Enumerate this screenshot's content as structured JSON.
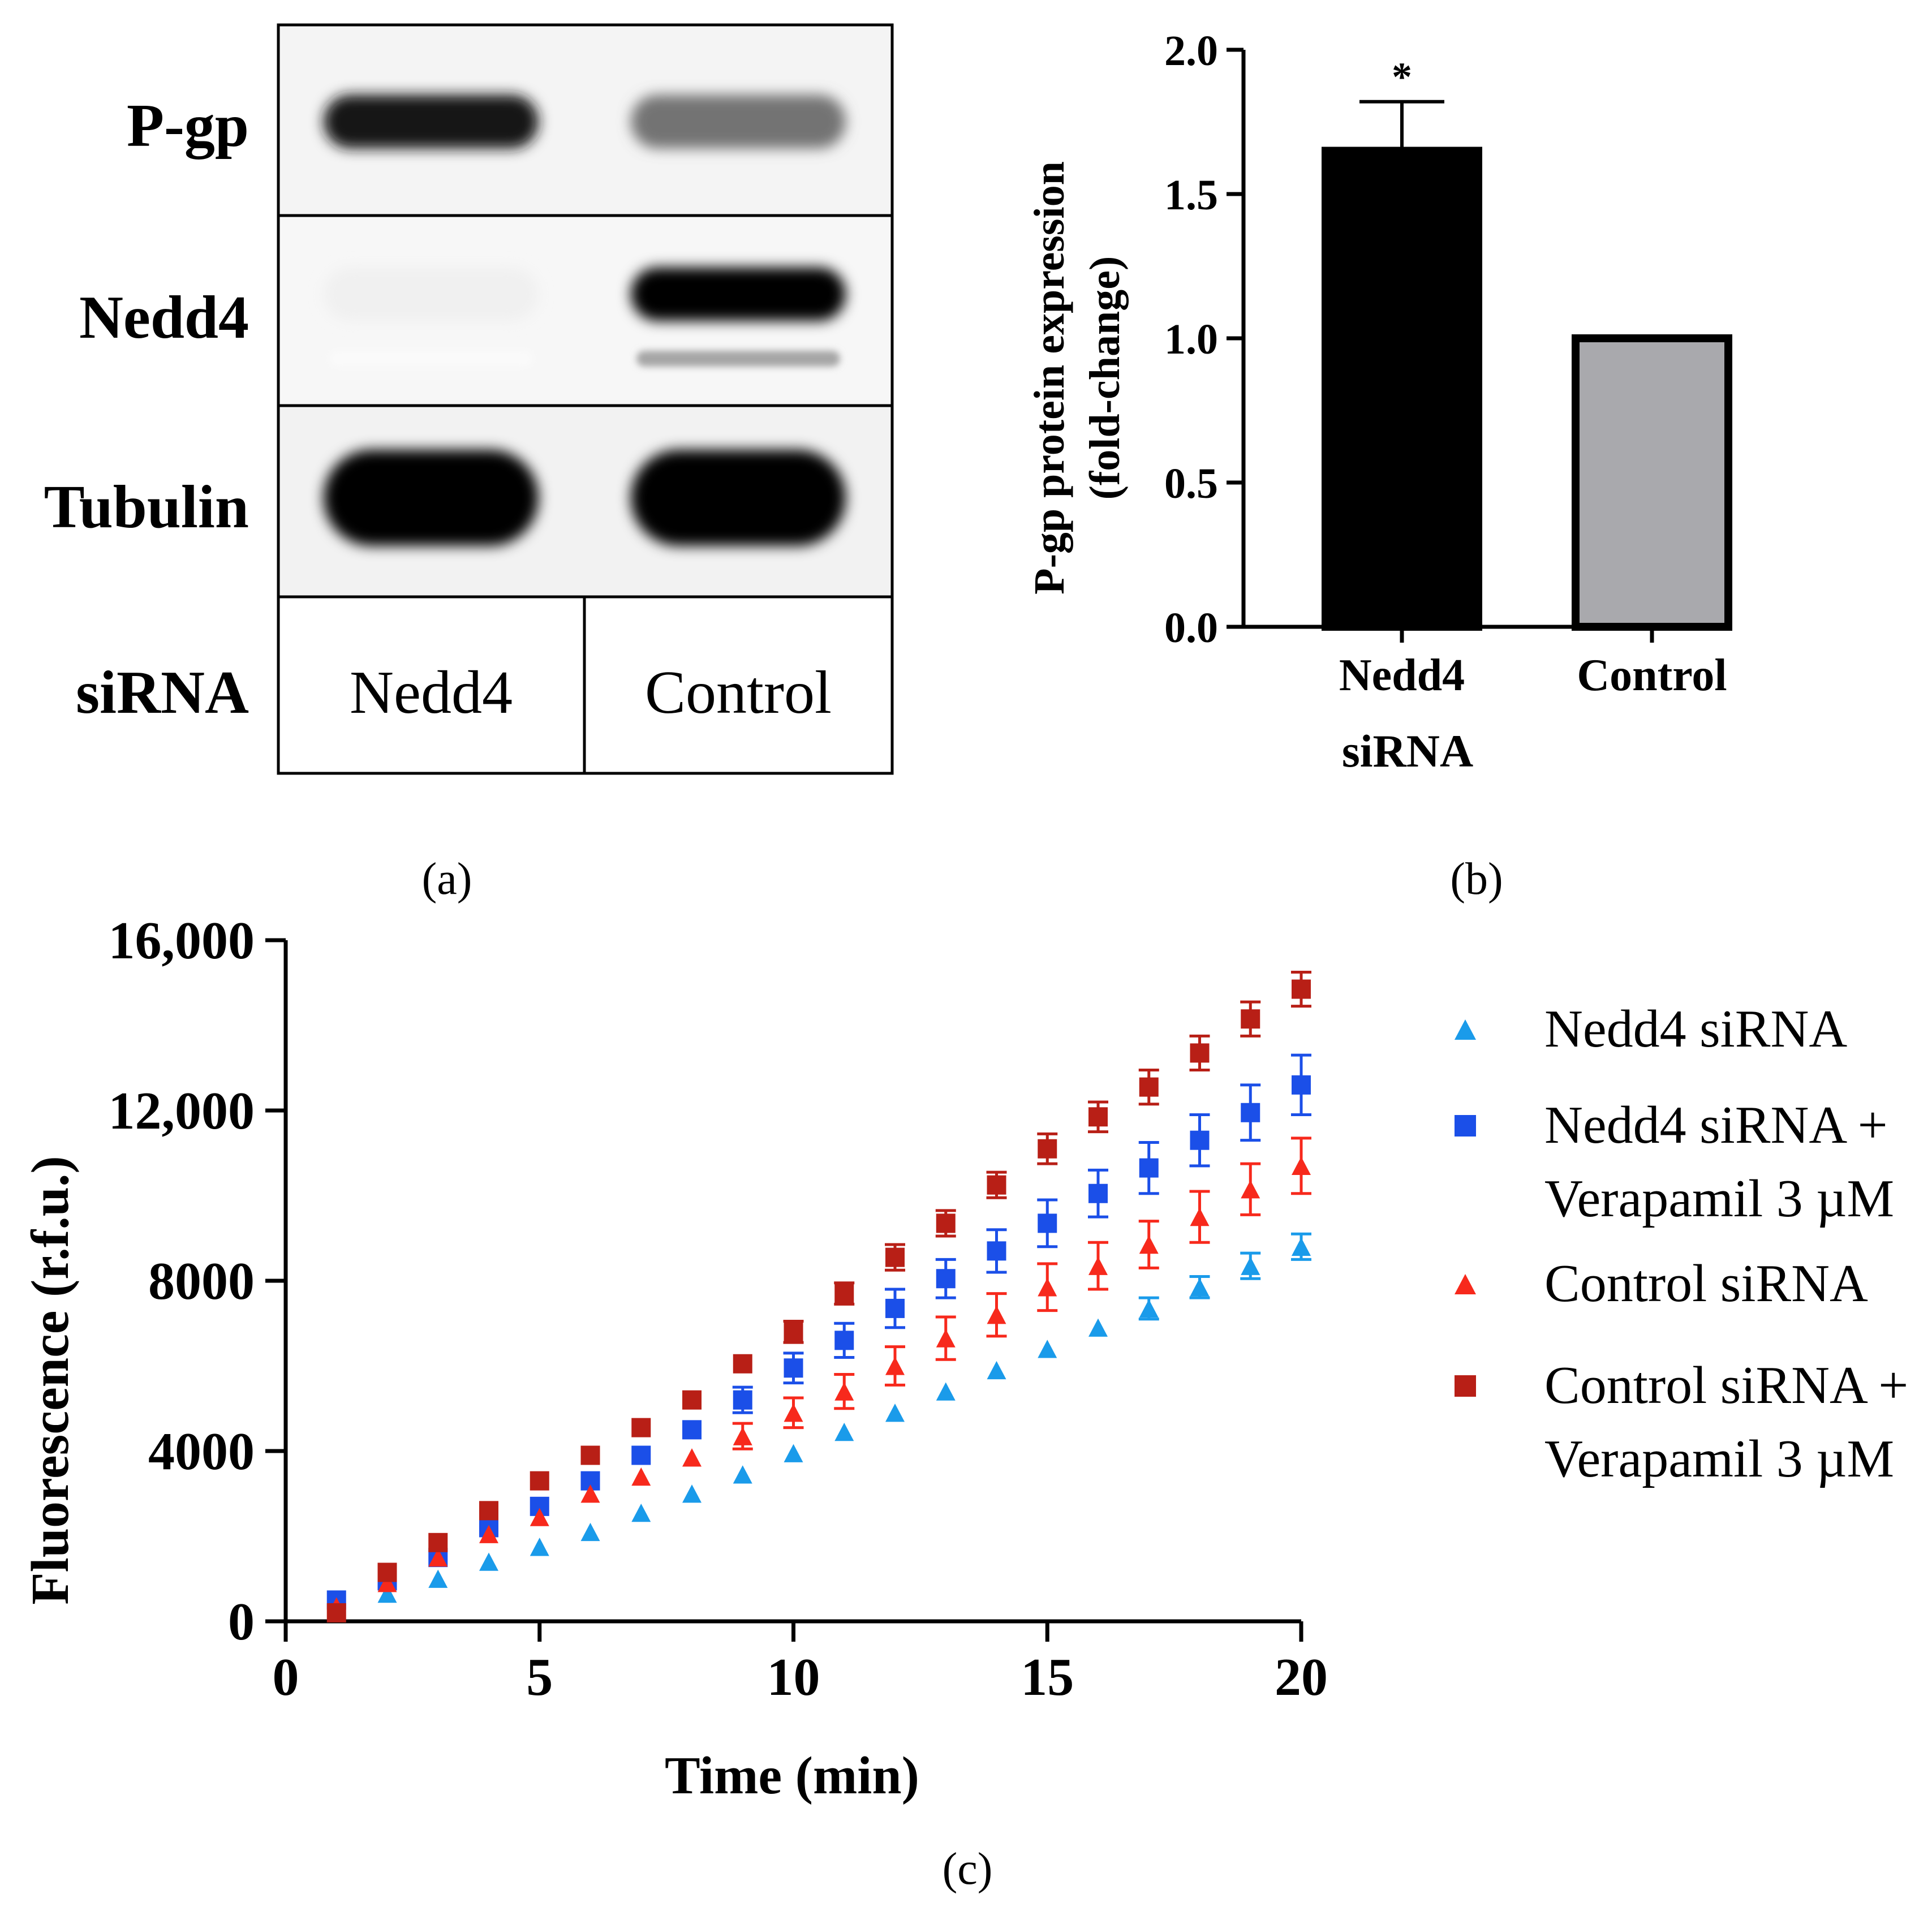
{
  "panels": {
    "a_label": "(a)",
    "b_label": "(b)",
    "c_label": "(c)"
  },
  "western_blot": {
    "rows": [
      "P-gp",
      "Nedd4",
      "Tubulin"
    ],
    "footer_label": "siRNA",
    "lanes": [
      "Nedd4",
      "Control"
    ],
    "band_intensity": {
      "P-gp": [
        0.9,
        0.55
      ],
      "Nedd4": [
        0.06,
        1.0
      ],
      "Tubulin": [
        1.0,
        1.0
      ]
    }
  },
  "chart_data": [
    {
      "id": "b",
      "type": "bar",
      "categories": [
        "Nedd4",
        "Control"
      ],
      "values": [
        1.65,
        1.0
      ],
      "errors": [
        0.17,
        0
      ],
      "bar_colors": [
        "#000000",
        "#a9a9ad"
      ],
      "significance": [
        "*",
        ""
      ],
      "title": "",
      "xlabel": "siRNA",
      "ylabel_lines": [
        "P-gp protein expression",
        "(fold-change)"
      ],
      "ylim": [
        0,
        2.0
      ],
      "yticks": [
        0,
        0.5,
        1.0,
        1.5,
        2.0
      ],
      "ytick_labels": [
        "0.0",
        "0.5",
        "1.0",
        "1.5",
        "2.0"
      ]
    },
    {
      "id": "c",
      "type": "scatter",
      "title": "",
      "xlabel": "Time (min)",
      "ylabel": "Fluorescence  (r.f.u.)",
      "xlim": [
        0,
        20
      ],
      "ylim": [
        0,
        16000
      ],
      "xticks": [
        0,
        5,
        10,
        15,
        20
      ],
      "xtick_labels": [
        "0",
        "5",
        "10",
        "15",
        "20"
      ],
      "yticks": [
        0,
        4000,
        8000,
        12000,
        16000
      ],
      "ytick_labels": [
        "0",
        "4000",
        "8000",
        "12,000",
        "16,000"
      ],
      "legend_position": "right",
      "x": [
        1,
        2,
        3,
        4,
        5,
        6,
        7,
        8,
        9,
        10,
        11,
        12,
        13,
        14,
        15,
        16,
        17,
        18,
        19,
        20
      ],
      "series": [
        {
          "name_lines": [
            "Nedd4 siRNA"
          ],
          "marker": "triangle",
          "color": "#1a9bea",
          "values": [
            200,
            650,
            1000,
            1400,
            1750,
            2100,
            2550,
            3000,
            3450,
            3950,
            4450,
            4900,
            5400,
            5900,
            6400,
            6900,
            7350,
            7850,
            8350,
            8800
          ],
          "errors": [
            0,
            0,
            0,
            0,
            0,
            0,
            0,
            0,
            0,
            0,
            0,
            0,
            0,
            0,
            0,
            0,
            250,
            250,
            300,
            300
          ]
        },
        {
          "name_lines": [
            "Nedd4 siRNA +",
            "Verapamil 3 µM"
          ],
          "marker": "square",
          "color": "#1b4fe8",
          "values": [
            500,
            950,
            1500,
            2200,
            2700,
            3300,
            3900,
            4500,
            5200,
            5950,
            6600,
            7350,
            8050,
            8700,
            9350,
            10050,
            10650,
            11300,
            11950,
            12600
          ],
          "errors": [
            0,
            0,
            0,
            0,
            0,
            0,
            0,
            0,
            300,
            350,
            400,
            450,
            450,
            500,
            550,
            550,
            600,
            600,
            650,
            700
          ]
        },
        {
          "name_lines": [
            "Control siRNA"
          ],
          "marker": "triangle",
          "color": "#f7291c",
          "values": [
            350,
            900,
            1500,
            2050,
            2450,
            3000,
            3400,
            3850,
            4350,
            4900,
            5400,
            6000,
            6650,
            7200,
            7850,
            8350,
            8850,
            9500,
            10150,
            10700
          ],
          "errors": [
            0,
            0,
            0,
            0,
            0,
            0,
            0,
            0,
            300,
            350,
            400,
            450,
            500,
            500,
            550,
            550,
            550,
            600,
            600,
            650
          ]
        },
        {
          "name_lines": [
            "Control siRNA +",
            "Verapamil 3 µM"
          ],
          "marker": "square",
          "color": "#b81f16",
          "values": [
            200,
            1150,
            1850,
            2600,
            3300,
            3900,
            4550,
            5200,
            6050,
            6800,
            7700,
            8550,
            9350,
            10250,
            11100,
            11850,
            12550,
            13350,
            14150,
            14850
          ],
          "errors": [
            0,
            0,
            0,
            0,
            0,
            0,
            0,
            0,
            0,
            250,
            250,
            300,
            300,
            300,
            350,
            350,
            400,
            400,
            400,
            400
          ]
        }
      ]
    }
  ]
}
